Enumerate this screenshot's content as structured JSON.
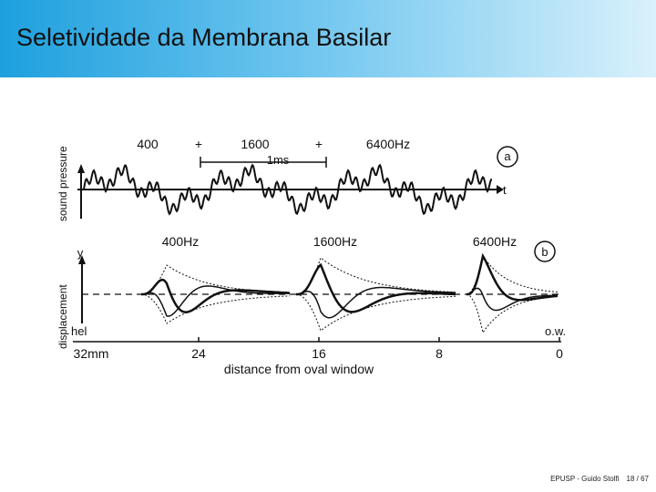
{
  "header": {
    "title": "Seletividade da Membrana Basilar"
  },
  "figure": {
    "panel_a": {
      "label": "a",
      "y_label": "sound pressure",
      "t_label": "t",
      "components": [
        "400",
        "+",
        "1600",
        "+",
        "6400Hz"
      ],
      "scale": "1ms"
    },
    "panel_b": {
      "label": "b",
      "y_label": "y",
      "side_label": "displacement",
      "waves": [
        "400Hz",
        "1600Hz",
        "6400Hz"
      ],
      "left_end": "hel",
      "right_end": "o.w.",
      "distances": [
        "32mm",
        "24",
        "16",
        "8",
        "0"
      ],
      "x_label": "distance from oval window"
    }
  },
  "footer": {
    "credit": "EPUSP - Guido Stolfi",
    "page": "18 / 67"
  }
}
